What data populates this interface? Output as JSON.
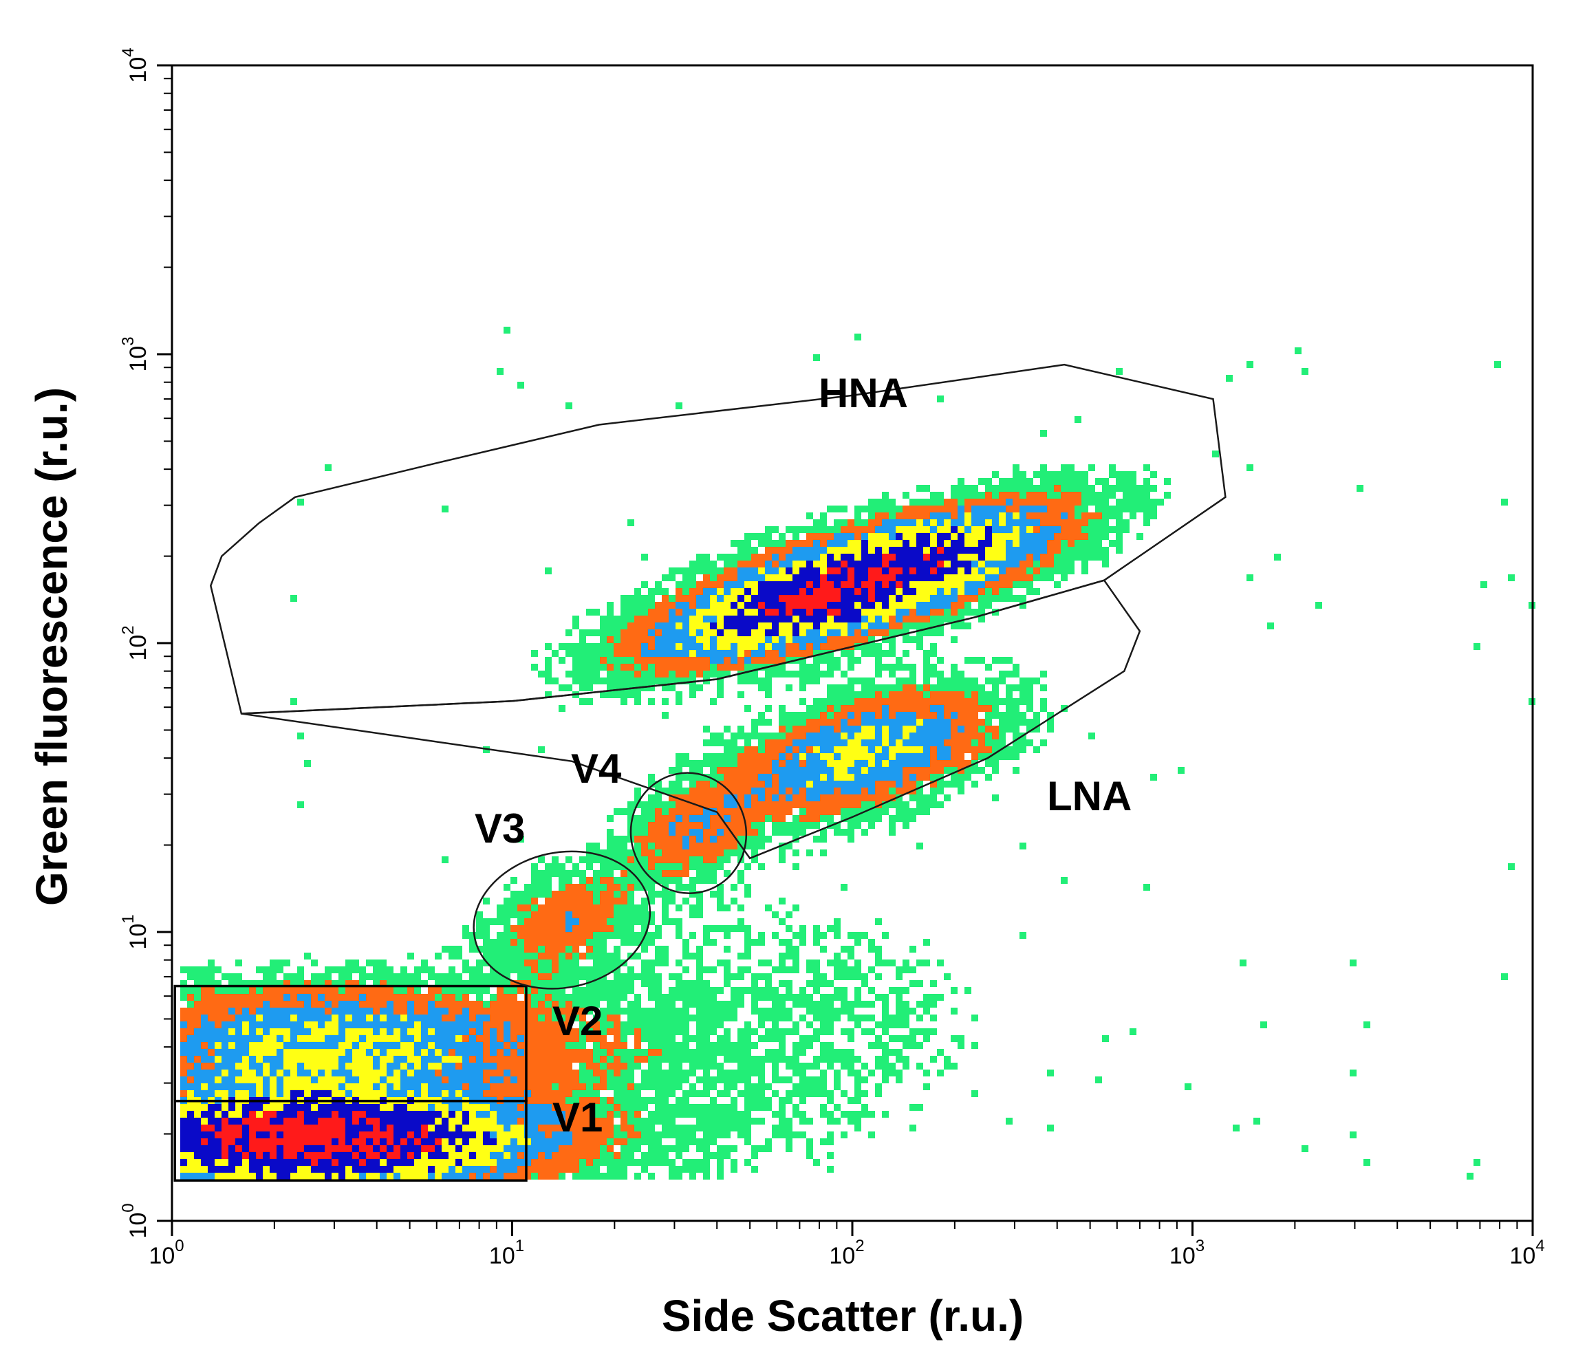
{
  "chart_data": {
    "type": "heatmap",
    "subtype": "flow cytometry density dot plot",
    "xlabel": "Side Scatter (r.u.)",
    "ylabel": "Green fluorescence (r.u.)",
    "xscale": "log",
    "yscale": "log",
    "xlim": [
      1,
      10000
    ],
    "ylim": [
      1,
      10000
    ],
    "x_ticks": [
      {
        "base": "10",
        "exp": "0"
      },
      {
        "base": "10",
        "exp": "1"
      },
      {
        "base": "10",
        "exp": "2"
      },
      {
        "base": "10",
        "exp": "3"
      },
      {
        "base": "10",
        "exp": "4"
      }
    ],
    "y_ticks": [
      {
        "base": "10",
        "exp": "0"
      },
      {
        "base": "10",
        "exp": "1"
      },
      {
        "base": "10",
        "exp": "2"
      },
      {
        "base": "10",
        "exp": "3"
      },
      {
        "base": "10",
        "exp": "4"
      }
    ],
    "grid": false,
    "density_colors": {
      "lowest": "#22ee77",
      "low": "#ff6a14",
      "medium": "#1e9bf0",
      "high": "#ffff14",
      "higher": "#0a0ac8",
      "highest": "#ff1a1a"
    },
    "gates": [
      {
        "label": "HNA",
        "shape": "polygon",
        "points": [
          [
            1.3,
            158
          ],
          [
            1.4,
            200
          ],
          [
            1.8,
            260
          ],
          [
            2.3,
            320
          ],
          [
            6,
            420
          ],
          [
            18,
            570
          ],
          [
            100,
            720
          ],
          [
            420,
            920
          ],
          [
            1150,
            700
          ],
          [
            1250,
            320
          ],
          [
            550,
            165
          ],
          [
            230,
            123
          ],
          [
            40,
            75
          ],
          [
            10,
            63
          ],
          [
            1.6,
            57
          ]
        ]
      },
      {
        "label": "LNA",
        "shape": "polygon",
        "points": [
          [
            1.6,
            57
          ],
          [
            10,
            63
          ],
          [
            40,
            75
          ],
          [
            230,
            123
          ],
          [
            550,
            165
          ],
          [
            700,
            110
          ],
          [
            630,
            80
          ],
          [
            250,
            40
          ],
          [
            100,
            25
          ],
          [
            50,
            18
          ],
          [
            40,
            26
          ],
          [
            15,
            39
          ]
        ]
      },
      {
        "label": "V1",
        "shape": "rectangle",
        "x": [
          1.02,
          11
        ],
        "y": [
          1.38,
          2.6
        ]
      },
      {
        "label": "V2",
        "shape": "rectangle",
        "x": [
          1.02,
          11
        ],
        "y": [
          2.6,
          6.5
        ]
      },
      {
        "label": "V3",
        "shape": "ellipse",
        "center": [
          14,
          11
        ],
        "x_range": [
          7.5,
          25
        ],
        "y_range": [
          6.3,
          18.5
        ]
      },
      {
        "label": "V4",
        "shape": "ellipse",
        "center": [
          33,
          22
        ],
        "x_range": [
          22,
          48
        ],
        "y_range": [
          13,
          34
        ]
      }
    ],
    "populations": [
      {
        "name": "V1 (dense core)",
        "x_range": [
          1,
          11
        ],
        "y_range": [
          1.4,
          2.6
        ],
        "peak": [
          2.5,
          1.9
        ],
        "level": "highest"
      },
      {
        "name": "V2",
        "x_range": [
          1,
          11
        ],
        "y_range": [
          2.6,
          6.5
        ],
        "peak": [
          3,
          4.5
        ],
        "level": "medium"
      },
      {
        "name": "V3",
        "x_range": [
          8,
          25
        ],
        "y_range": [
          7,
          18
        ],
        "peak": [
          14,
          11
        ],
        "level": "low"
      },
      {
        "name": "V4",
        "x_range": [
          22,
          48
        ],
        "y_range": [
          13,
          33
        ],
        "peak": [
          33,
          22
        ],
        "level": "low"
      },
      {
        "name": "HNA",
        "x_range": [
          3,
          1000
        ],
        "y_range": [
          60,
          500
        ],
        "peak": [
          90,
          150
        ],
        "level": "highest"
      },
      {
        "name": "LNA",
        "x_range": [
          15,
          500
        ],
        "y_range": [
          18,
          110
        ],
        "peak": [
          120,
          40
        ],
        "level": "high"
      }
    ]
  },
  "labels": {
    "hna": "HNA",
    "lna": "LNA",
    "v1": "V1",
    "v2": "V2",
    "v3": "V3",
    "v4": "V4"
  }
}
